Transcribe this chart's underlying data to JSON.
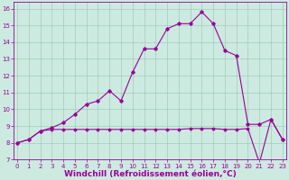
{
  "xlabel": "Windchill (Refroidissement éolien,°C)",
  "x_values": [
    0,
    1,
    2,
    3,
    4,
    5,
    6,
    7,
    8,
    9,
    10,
    11,
    12,
    13,
    14,
    15,
    16,
    17,
    18,
    19,
    20,
    21,
    22,
    23
  ],
  "line1": [
    8.0,
    8.2,
    8.7,
    8.9,
    9.2,
    9.7,
    10.3,
    10.5,
    11.1,
    10.5,
    12.2,
    13.6,
    13.6,
    14.8,
    15.1,
    15.1,
    15.8,
    15.1,
    13.5,
    13.2,
    9.1,
    9.1,
    9.4,
    8.2
  ],
  "line2": [
    8.0,
    8.2,
    8.7,
    8.8,
    8.8,
    8.8,
    8.8,
    8.8,
    8.8,
    8.8,
    8.8,
    8.8,
    8.8,
    8.8,
    8.8,
    8.85,
    8.85,
    8.85,
    8.8,
    8.8,
    8.85,
    6.8,
    9.4,
    8.2
  ],
  "line_color": "#990099",
  "background_color": "#cdeae0",
  "grid_color": "#a0ccbb",
  "ylim": [
    7,
    16.4
  ],
  "yticks": [
    7,
    8,
    9,
    10,
    11,
    12,
    13,
    14,
    15,
    16
  ],
  "xlim": [
    -0.3,
    23.3
  ],
  "xticks": [
    0,
    1,
    2,
    3,
    4,
    5,
    6,
    7,
    8,
    9,
    10,
    11,
    12,
    13,
    14,
    15,
    16,
    17,
    18,
    19,
    20,
    21,
    22,
    23
  ],
  "tick_fontsize": 5,
  "label_fontsize": 6.5
}
